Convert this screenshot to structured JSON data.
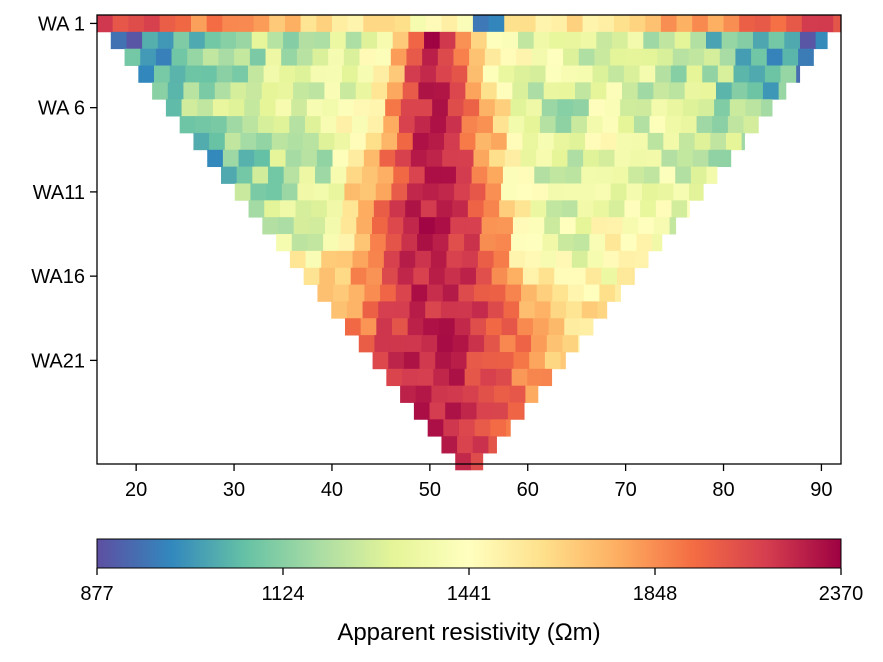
{
  "chart_data": {
    "type": "heatmap",
    "title": "",
    "xlabel": "",
    "ylabel": "",
    "xlim": [
      16,
      92
    ],
    "xticks": [
      20,
      30,
      40,
      50,
      60,
      70,
      80,
      90
    ],
    "ylim_levels": [
      1,
      27
    ],
    "yticks": [
      {
        "level": 1,
        "label": "WA 1"
      },
      {
        "level": 6,
        "label": "WA 6"
      },
      {
        "level": 11,
        "label": "WA11"
      },
      {
        "level": 16,
        "label": "WA16"
      },
      {
        "level": 21,
        "label": "WA21"
      }
    ],
    "pseudosection": {
      "levels": 27,
      "x_center": 54,
      "x_start_level1": 16,
      "x_end_level1": 92,
      "cell_width": 1.6
    },
    "values_description_profile": {
      "low_edges_upper_levels": 1000,
      "central_high_band_x": [
        48,
        53
      ],
      "peak_value": 2370
    },
    "colorbar": {
      "label": "Apparent resistivity (Ωm)",
      "min": 877,
      "max": 2370,
      "tick_labels": [
        "877",
        "1124",
        "1441",
        "1848",
        "2370"
      ],
      "colormap": "Spectral_r",
      "stops": [
        "#5e4fa2",
        "#3288bd",
        "#66c2a5",
        "#abdda4",
        "#e6f598",
        "#ffffbf",
        "#fee08b",
        "#fdae61",
        "#f46d43",
        "#d53e4f",
        "#9e0142"
      ]
    }
  }
}
